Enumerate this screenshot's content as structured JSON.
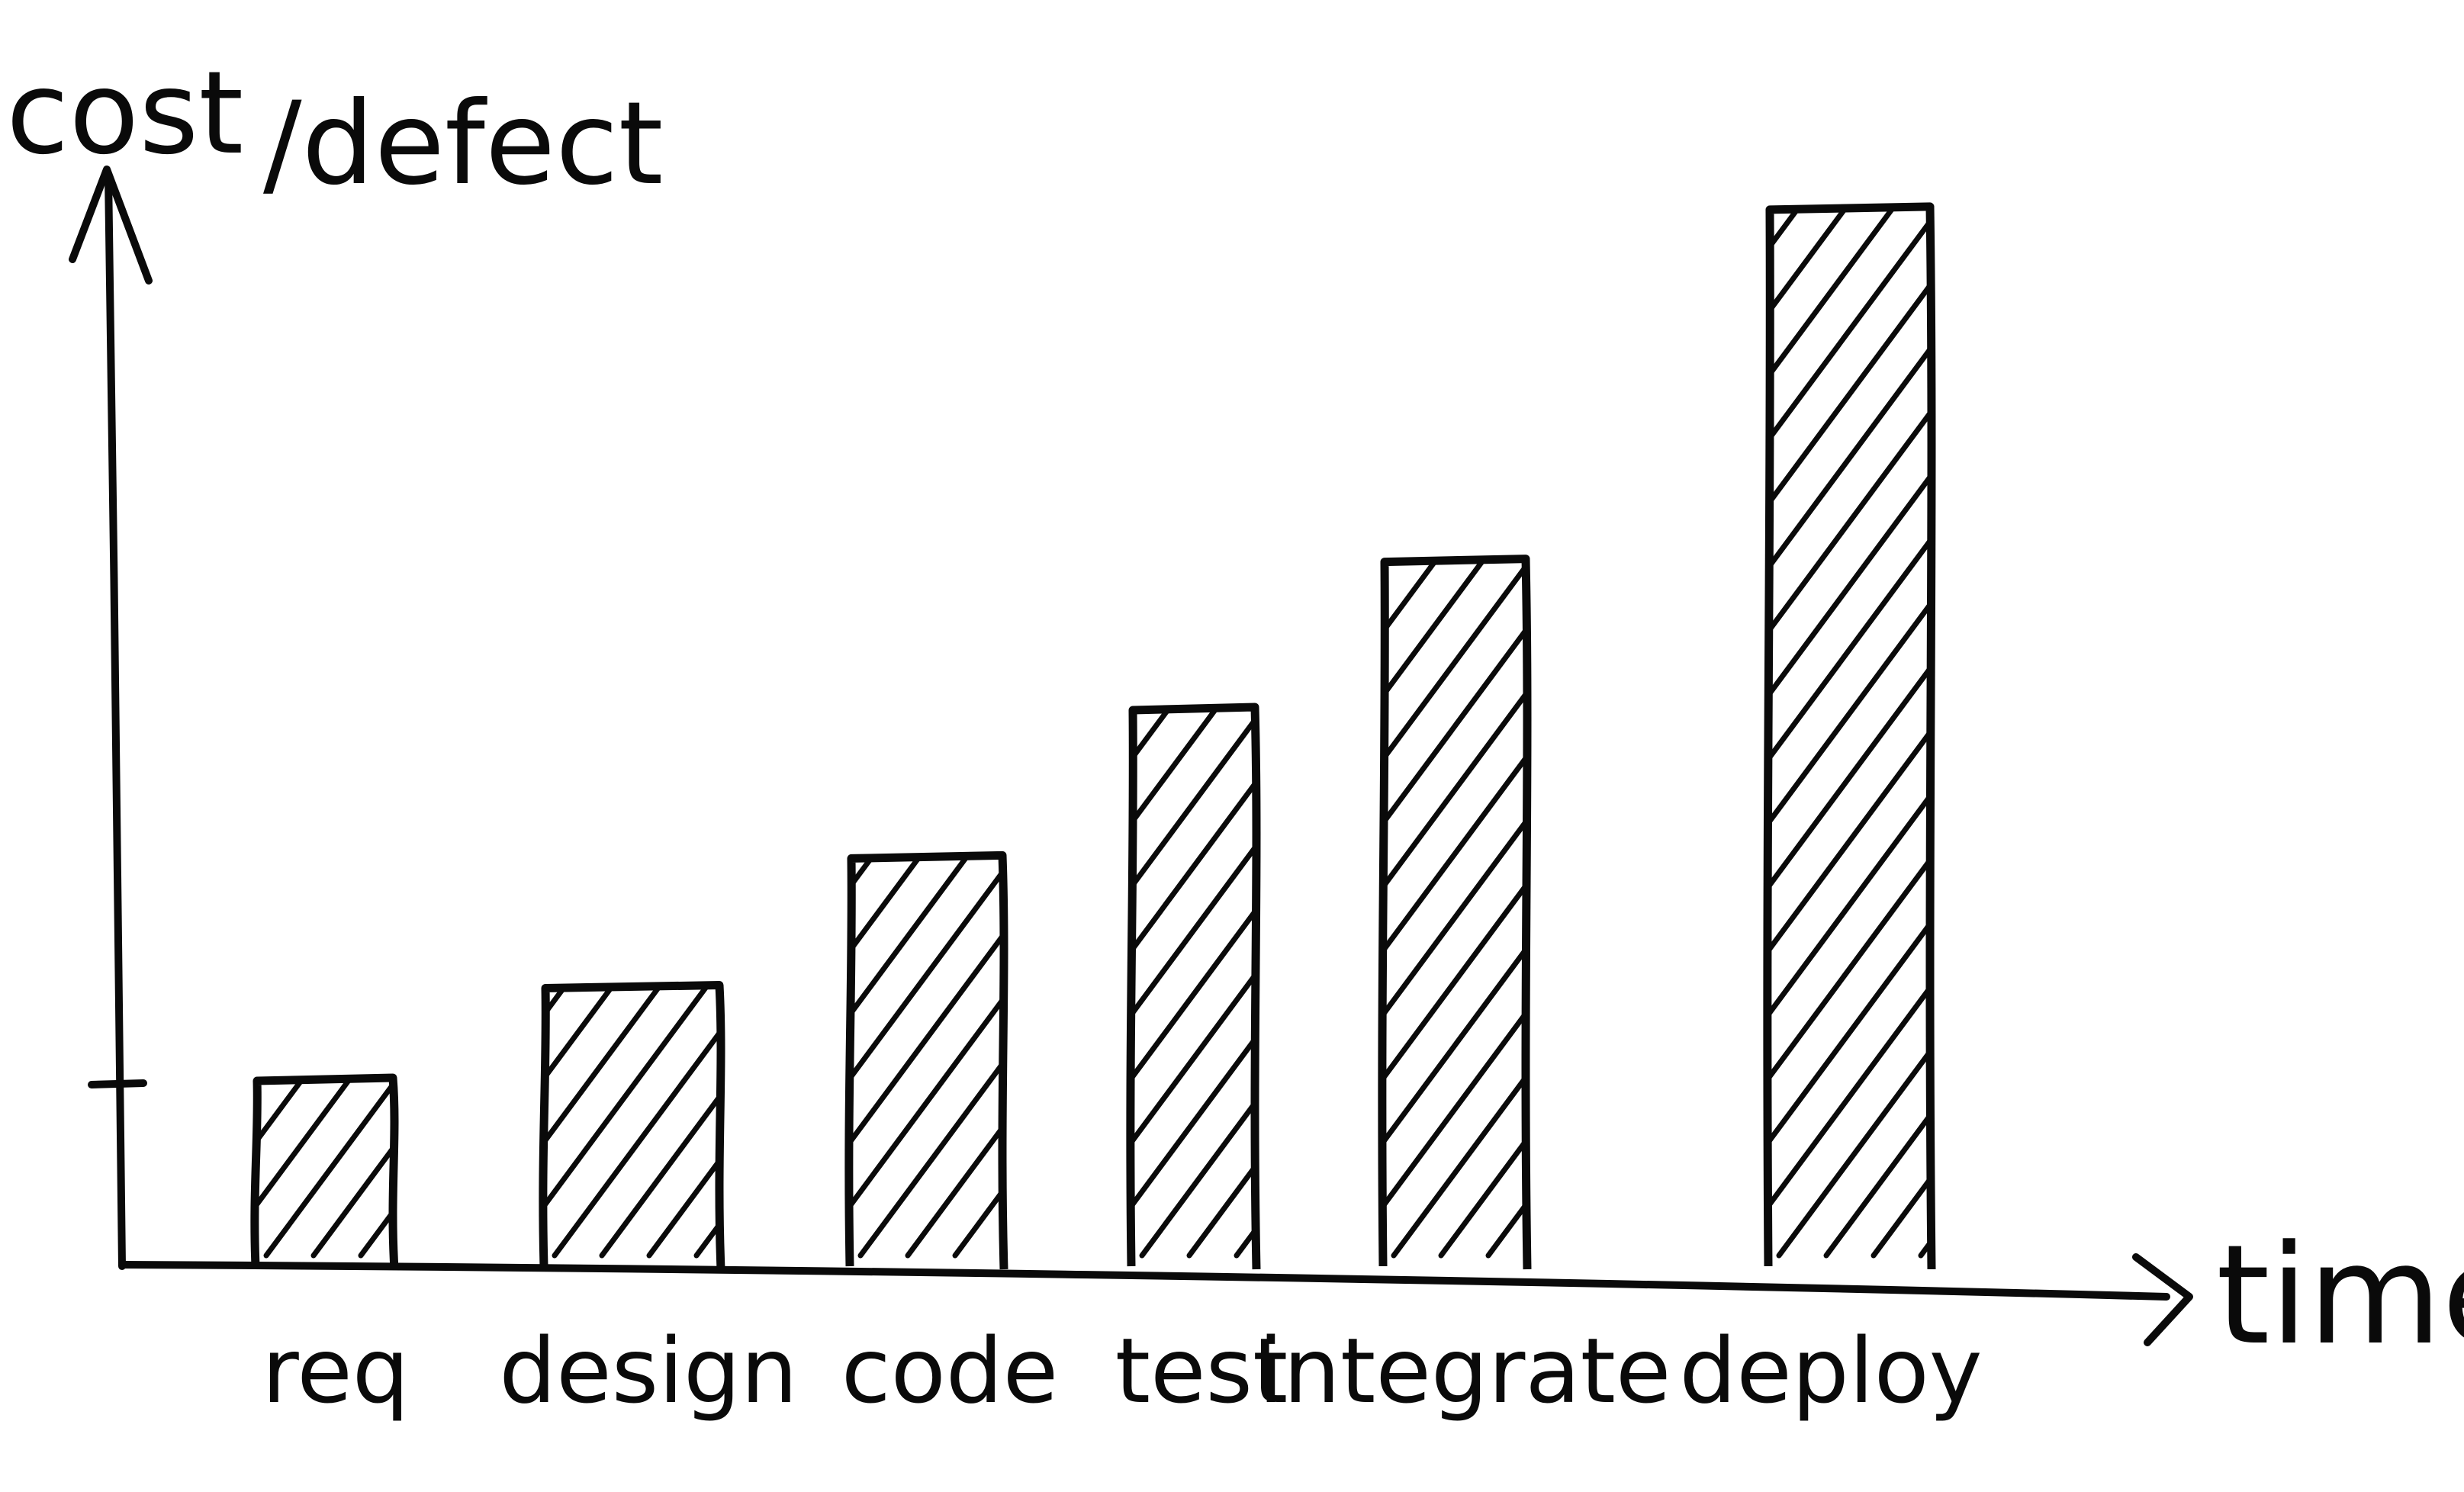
{
  "chart_data": {
    "type": "bar",
    "title": "",
    "xlabel": "time",
    "ylabel_main": "cost",
    "ylabel_sub": "/defect",
    "categories": [
      "req",
      "design",
      "code",
      "test",
      "integrate",
      "deploy"
    ],
    "values": [
      1,
      1.5,
      2.2,
      3.0,
      3.8,
      5.7
    ],
    "ylim": [
      0,
      6
    ],
    "yticks": [
      1
    ],
    "grid": false,
    "legend": "none",
    "style": "hand-drawn, hatched bars",
    "colors": {
      "ink": "#0a0a0a",
      "background": "#ffffff"
    }
  }
}
